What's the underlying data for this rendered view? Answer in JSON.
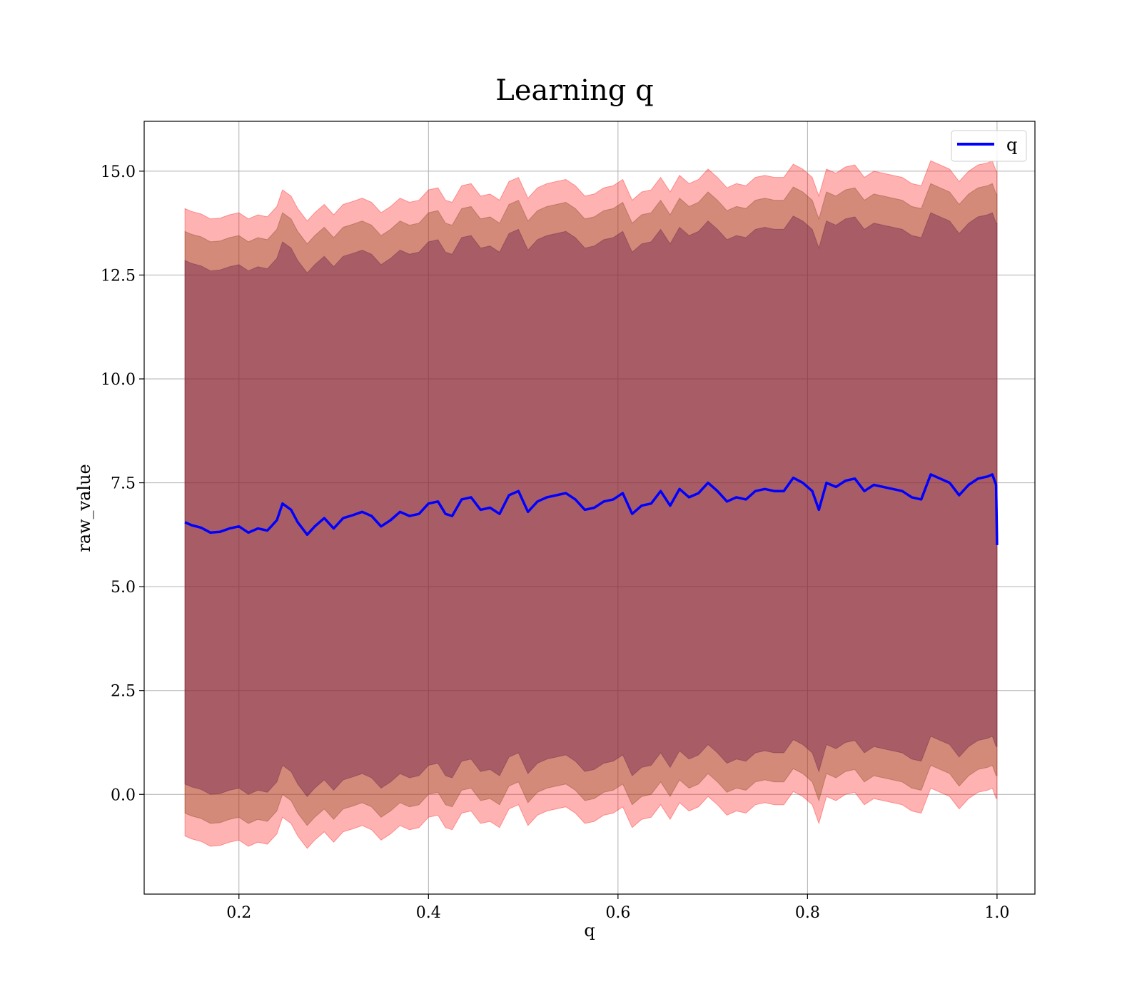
{
  "chart_data": {
    "type": "line",
    "title": "Learning q",
    "xlabel": "q",
    "ylabel": "raw_value",
    "xlim": [
      0.1,
      1.04
    ],
    "ylim": [
      -2.4,
      16.2
    ],
    "xticks": [
      0.2,
      0.4,
      0.6,
      0.8,
      1.0
    ],
    "xtick_labels": [
      "0.2",
      "0.4",
      "0.6",
      "0.8",
      "1.0"
    ],
    "yticks": [
      0.0,
      2.5,
      5.0,
      7.5,
      10.0,
      12.5,
      15.0
    ],
    "ytick_labels": [
      "0.0",
      "2.5",
      "5.0",
      "7.5",
      "10.0",
      "12.5",
      "15.0"
    ],
    "grid": true,
    "legend": {
      "position": "top-right",
      "entries": [
        "q"
      ]
    },
    "series": [
      {
        "name": "q",
        "color": "#0000ff",
        "x": [
          0.143,
          0.15,
          0.16,
          0.17,
          0.18,
          0.19,
          0.2,
          0.21,
          0.22,
          0.23,
          0.24,
          0.246,
          0.255,
          0.262,
          0.272,
          0.28,
          0.29,
          0.3,
          0.31,
          0.32,
          0.33,
          0.34,
          0.35,
          0.36,
          0.37,
          0.38,
          0.39,
          0.4,
          0.41,
          0.418,
          0.425,
          0.435,
          0.445,
          0.455,
          0.465,
          0.475,
          0.485,
          0.495,
          0.505,
          0.515,
          0.525,
          0.535,
          0.545,
          0.555,
          0.565,
          0.575,
          0.585,
          0.595,
          0.605,
          0.615,
          0.625,
          0.635,
          0.645,
          0.655,
          0.665,
          0.675,
          0.685,
          0.695,
          0.705,
          0.715,
          0.725,
          0.735,
          0.745,
          0.755,
          0.765,
          0.775,
          0.785,
          0.795,
          0.805,
          0.812,
          0.82,
          0.83,
          0.84,
          0.85,
          0.86,
          0.87,
          0.88,
          0.89,
          0.9,
          0.91,
          0.92,
          0.93,
          0.94,
          0.95,
          0.96,
          0.97,
          0.98,
          0.99,
          0.995,
          0.999,
          1.0
        ],
        "y": [
          6.55,
          6.48,
          6.42,
          6.3,
          6.32,
          6.4,
          6.45,
          6.3,
          6.4,
          6.35,
          6.6,
          7.0,
          6.85,
          6.55,
          6.25,
          6.45,
          6.65,
          6.4,
          6.65,
          6.72,
          6.8,
          6.7,
          6.45,
          6.6,
          6.8,
          6.7,
          6.75,
          7.0,
          7.05,
          6.75,
          6.7,
          7.1,
          7.15,
          6.85,
          6.9,
          6.75,
          7.2,
          7.3,
          6.8,
          7.05,
          7.15,
          7.2,
          7.25,
          7.1,
          6.85,
          6.9,
          7.05,
          7.1,
          7.25,
          6.75,
          6.95,
          7.0,
          7.3,
          6.95,
          7.35,
          7.15,
          7.25,
          7.5,
          7.3,
          7.05,
          7.15,
          7.1,
          7.3,
          7.35,
          7.3,
          7.3,
          7.62,
          7.5,
          7.3,
          6.85,
          7.5,
          7.4,
          7.55,
          7.6,
          7.3,
          7.45,
          7.4,
          7.35,
          7.3,
          7.15,
          7.1,
          7.7,
          7.6,
          7.5,
          7.2,
          7.45,
          7.6,
          7.65,
          7.7,
          7.45,
          6.0
        ],
        "band_inner": 6.3,
        "band_middle": 7.0,
        "band_outer": 7.55
      }
    ]
  }
}
